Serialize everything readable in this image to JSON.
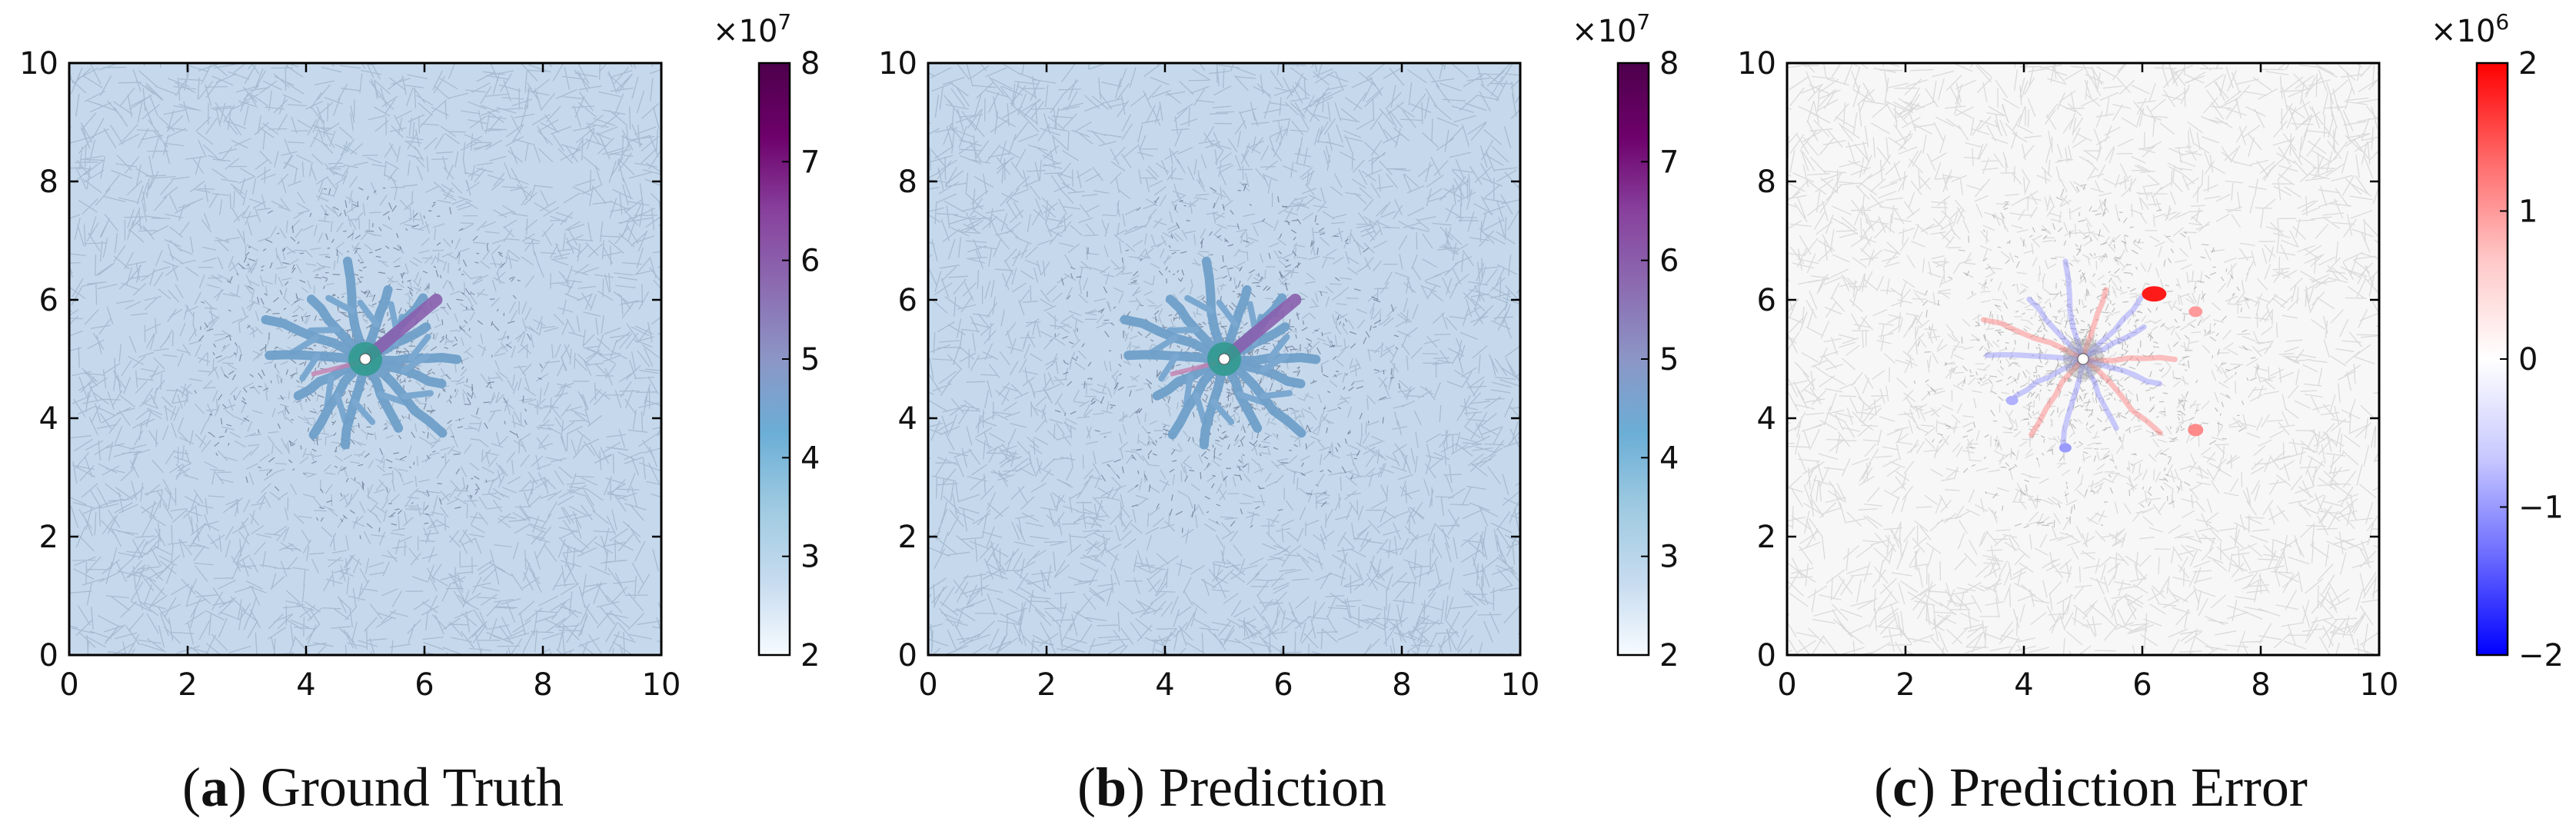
{
  "chart_data": [
    {
      "type": "heatmap",
      "panel_letter": "a",
      "caption_rest": " Ground Truth",
      "xlim": [
        0,
        10
      ],
      "ylim": [
        0,
        10
      ],
      "xticks": [
        "0",
        "2",
        "4",
        "6",
        "8",
        "10"
      ],
      "yticks": [
        "0",
        "2",
        "4",
        "6",
        "8",
        "10"
      ],
      "background_color": "#c6d9ec",
      "well_location": [
        5,
        5
      ],
      "colorbar": {
        "min": 2,
        "max": 8,
        "ticks": [
          "2",
          "3",
          "4",
          "5",
          "6",
          "7",
          "8"
        ],
        "multiplier_base": "×10",
        "multiplier_exp": "7",
        "colors": [
          "#f7fbff",
          "#c6dbef",
          "#9ecae1",
          "#6baed6",
          "#8c96c6",
          "#8c6bb1",
          "#88419d",
          "#6e016b",
          "#4d004b"
        ]
      }
    },
    {
      "type": "heatmap",
      "panel_letter": "b",
      "caption_rest": " Prediction",
      "xlim": [
        0,
        10
      ],
      "ylim": [
        0,
        10
      ],
      "xticks": [
        "0",
        "2",
        "4",
        "6",
        "8",
        "10"
      ],
      "yticks": [
        "0",
        "2",
        "4",
        "6",
        "8",
        "10"
      ],
      "background_color": "#c6d9ec",
      "well_location": [
        5,
        5
      ],
      "colorbar": {
        "min": 2,
        "max": 8,
        "ticks": [
          "2",
          "3",
          "4",
          "5",
          "6",
          "7",
          "8"
        ],
        "multiplier_base": "×10",
        "multiplier_exp": "7",
        "colors": [
          "#f7fbff",
          "#c6dbef",
          "#9ecae1",
          "#6baed6",
          "#8c96c6",
          "#8c6bb1",
          "#88419d",
          "#6e016b",
          "#4d004b"
        ]
      }
    },
    {
      "type": "heatmap",
      "panel_letter": "c",
      "caption_rest": " Prediction Error",
      "xlim": [
        0,
        10
      ],
      "ylim": [
        0,
        10
      ],
      "xticks": [
        "0",
        "2",
        "4",
        "6",
        "8",
        "10"
      ],
      "yticks": [
        "0",
        "2",
        "4",
        "6",
        "8",
        "10"
      ],
      "background_color": "#f7f7f7",
      "well_location": [
        5,
        5
      ],
      "colorbar": {
        "min": -2,
        "max": 2,
        "ticks": [
          "−2",
          "−1",
          "0",
          "1",
          "2"
        ],
        "multiplier_base": "×10",
        "multiplier_exp": "6",
        "colors": [
          "#0000ff",
          "#6b6bff",
          "#c8c8ff",
          "#ffffff",
          "#ffc8c8",
          "#ff6b6b",
          "#ff0000"
        ]
      }
    }
  ]
}
